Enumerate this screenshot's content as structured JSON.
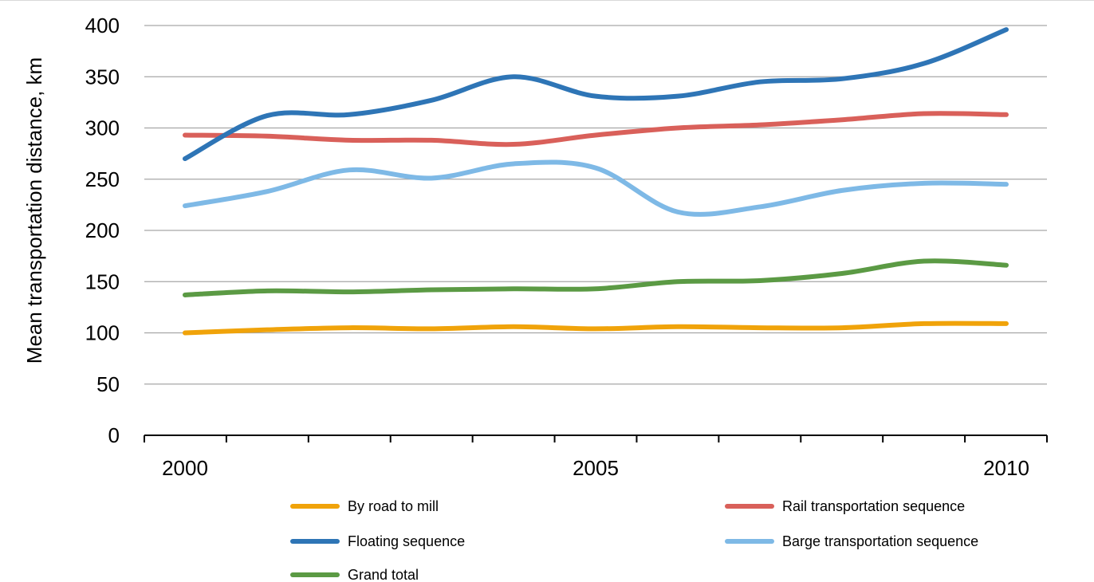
{
  "chart_data": {
    "type": "line",
    "title": "",
    "xlabel": "",
    "ylabel": "Mean transportation distance,  km",
    "x": [
      2000,
      2001,
      2002,
      2003,
      2004,
      2005,
      2006,
      2007,
      2008,
      2009,
      2010
    ],
    "xticks": [
      "2000",
      "2005",
      "2010"
    ],
    "yticks": [
      "0",
      "50",
      "100",
      "150",
      "200",
      "250",
      "300",
      "350",
      "400"
    ],
    "ylim": [
      0,
      400
    ],
    "grid": true,
    "smooth": true,
    "legend_position": "bottom",
    "series": [
      {
        "name": "By road to mill",
        "color": "#f0a30a",
        "values": [
          100,
          103,
          105,
          104,
          106,
          104,
          106,
          105,
          105,
          109,
          109
        ]
      },
      {
        "name": "Rail transportation sequence",
        "color": "#d9605a",
        "values": [
          293,
          292,
          288,
          288,
          284,
          293,
          300,
          303,
          308,
          314,
          313
        ]
      },
      {
        "name": "Floating sequence",
        "color": "#2e75b6",
        "values": [
          270,
          312,
          313,
          327,
          350,
          331,
          331,
          345,
          348,
          363,
          396
        ]
      },
      {
        "name": "Barge transportation sequence",
        "color": "#7eb9e6",
        "values": [
          224,
          238,
          259,
          251,
          265,
          261,
          218,
          223,
          239,
          246,
          245
        ]
      },
      {
        "name": "Grand total",
        "color": "#5b9a44",
        "values": [
          137,
          141,
          140,
          142,
          143,
          143,
          150,
          151,
          158,
          170,
          166
        ]
      }
    ]
  }
}
